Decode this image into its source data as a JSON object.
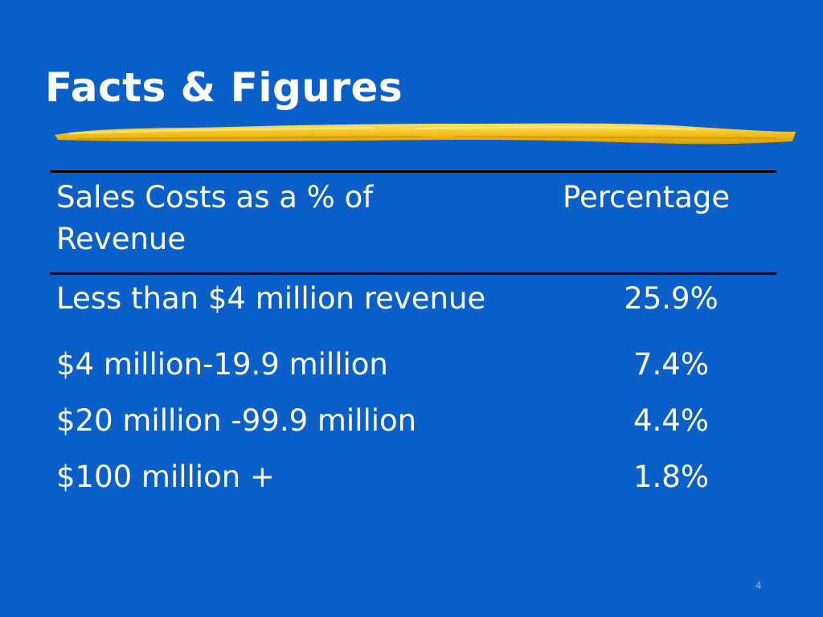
{
  "slide": {
    "title": "Facts & Figures",
    "page_number": "4",
    "accent_color": "#f2c21a",
    "background_color": "#0a5fc8"
  },
  "table": {
    "header": {
      "category_label": "Sales Costs as a % of Revenue",
      "value_label": "Percentage"
    },
    "rows": [
      {
        "label": "Less than $4 million revenue",
        "value": "25.9%"
      },
      {
        "label": "$4 million-19.9 million",
        "value": "7.4%"
      },
      {
        "label": "$20 million -99.9 million",
        "value": "4.4%"
      },
      {
        "label": "$100 million +",
        "value": "1.8%"
      }
    ]
  }
}
